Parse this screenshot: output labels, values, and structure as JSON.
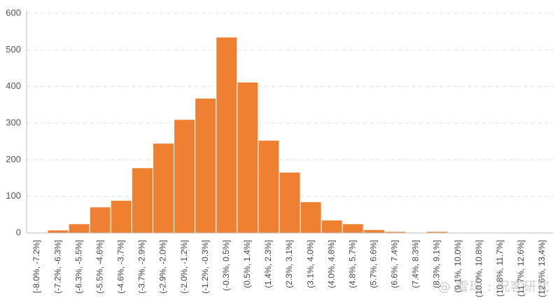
{
  "watermark": "@ 雪球 : 况客研究",
  "chart_data": {
    "type": "bar",
    "title": "",
    "xlabel": "",
    "ylabel": "",
    "ylim": [
      0,
      600
    ],
    "yticks": [
      0,
      100,
      200,
      300,
      400,
      500,
      600
    ],
    "grid": true,
    "legend": "none",
    "bar_color": "#ef8031",
    "categories": [
      "[-8.0%, -7.2%]",
      "(-7.2%, -6.3%]",
      "(-6.3%, -5.5%]",
      "(-5.5%, -4.6%]",
      "(-4.6%, -3.7%]",
      "(-3.7%, -2.9%]",
      "(-2.9%, -2.0%]",
      "(-2.0%, -1.2%]",
      "(-1.2%, -0.3%]",
      "(-0.3%, 0.5%]",
      "(0.5%, 1.4%]",
      "(1.4%, 2.3%]",
      "(2.3%, 3.1%]",
      "(3.1%, 4.0%]",
      "(4.0%, 4.8%]",
      "(4.8%, 5.7%]",
      "(5.7%, 6.6%]",
      "(6.6%, 7.4%]",
      "(7.4%, 8.3%]",
      "(8.3%, 9.1%]",
      "(9.1%, 10.0%]",
      "(10.0%, 10.8%]",
      "(10.8%, 11.7%]",
      "(11.7%, 12.6%]",
      "(12.6%, 13.4%]"
    ],
    "values": [
      1,
      8,
      25,
      71,
      89,
      178,
      245,
      310,
      368,
      535,
      412,
      253,
      166,
      85,
      35,
      25,
      9,
      4,
      2,
      4,
      1,
      0,
      0,
      0,
      0
    ]
  }
}
